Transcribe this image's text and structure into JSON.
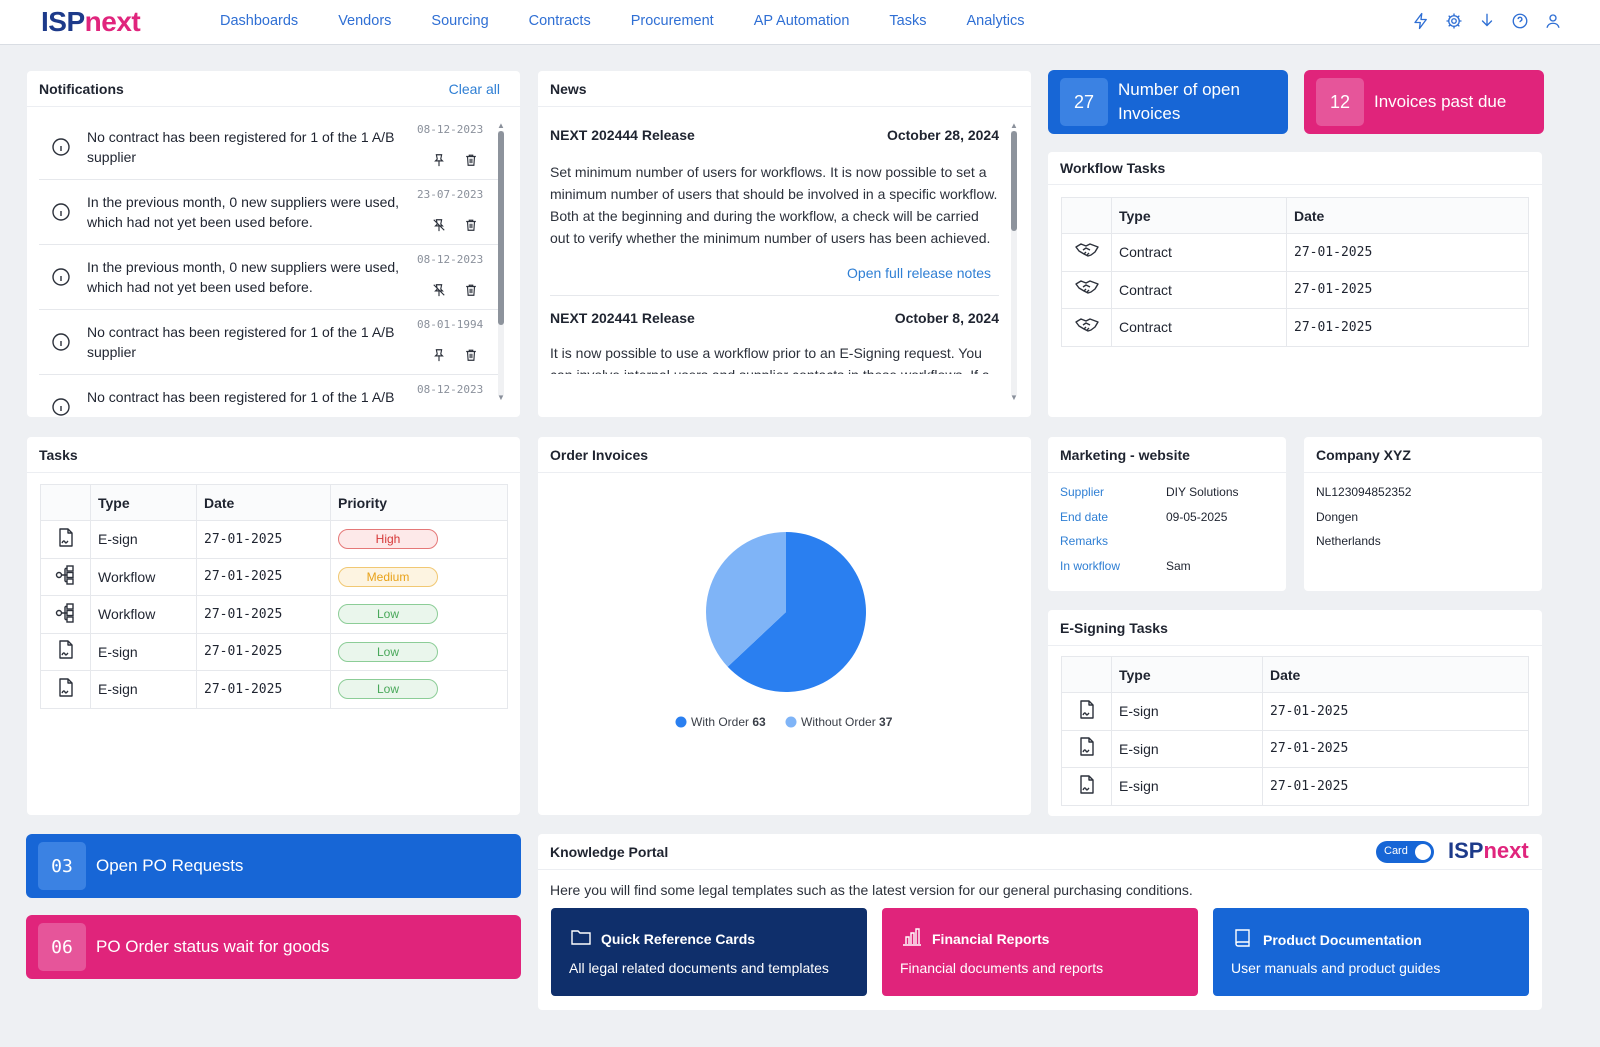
{
  "header": {
    "logo_a": "ISP",
    "logo_b": "next",
    "nav": [
      "Dashboards",
      "Vendors",
      "Sourcing",
      "Contracts",
      "Procurement",
      "AP Automation",
      "Tasks",
      "Analytics"
    ],
    "icons": [
      "flash-icon",
      "gear-icon",
      "download-icon",
      "help-icon",
      "user-icon"
    ]
  },
  "notifications": {
    "title": "Notifications",
    "clear_label": "Clear all",
    "items": [
      {
        "text": "No contract has been registered for 1 of the 1 A/B supplier",
        "date": "08-12-2023",
        "pinned": true
      },
      {
        "text": "In the previous month, 0 new suppliers were used, which had not yet been used before.",
        "date": "23-07-2023",
        "pinned": false
      },
      {
        "text": "In the previous month, 0 new suppliers were used, which had not yet been used before.",
        "date": "08-12-2023",
        "pinned": false
      },
      {
        "text": "No contract has been registered for 1 of the 1 A/B supplier",
        "date": "08-01-1994",
        "pinned": true
      },
      {
        "text": "No contract has been registered for 1 of the 1 A/B",
        "date": "08-12-2023",
        "pinned": true
      }
    ]
  },
  "news": {
    "title": "News",
    "items": [
      {
        "title": "NEXT 202444 Release",
        "date": "October 28, 2024",
        "body": "Set minimum number of users for workflows. It is now possible to set a minimum number of users that should be involved in a specific workflow. Both at the beginning and during the workflow, a check will be carried out to verify whether the minimum number of users has been achieved.",
        "link": "Open full release notes"
      },
      {
        "title": "NEXT 202441 Release",
        "date": "October 8, 2024",
        "body": "It is now possible to use a workflow prior to an E-Signing request. You can involve internal users and supplier contacts in these workflows. If a"
      }
    ]
  },
  "kpis": {
    "open_invoices": {
      "value": "27",
      "label": "Number of open Invoices"
    },
    "past_due": {
      "value": "12",
      "label": "Invoices past due"
    },
    "open_po": {
      "value": "03",
      "label": "Open PO Requests"
    },
    "po_wait": {
      "value": "06",
      "label": "PO Order status wait for goods"
    }
  },
  "workflow_tasks": {
    "title": "Workflow Tasks",
    "columns": [
      "Type",
      "Date"
    ],
    "rows": [
      {
        "type": "Contract",
        "date": "27-01-2025"
      },
      {
        "type": "Contract",
        "date": "27-01-2025"
      },
      {
        "type": "Contract",
        "date": "27-01-2025"
      }
    ]
  },
  "tasks": {
    "title": "Tasks",
    "columns": [
      "Type",
      "Date",
      "Priority"
    ],
    "rows": [
      {
        "type": "E-sign",
        "icon": "document-sign-icon",
        "date": "27-01-2025",
        "priority": "High"
      },
      {
        "type": "Workflow",
        "icon": "workflow-icon",
        "date": "27-01-2025",
        "priority": "Medium"
      },
      {
        "type": "Workflow",
        "icon": "workflow-icon",
        "date": "27-01-2025",
        "priority": "Low"
      },
      {
        "type": "E-sign",
        "icon": "document-sign-icon",
        "date": "27-01-2025",
        "priority": "Low"
      },
      {
        "type": "E-sign",
        "icon": "document-sign-icon",
        "date": "27-01-2025",
        "priority": "Low"
      }
    ]
  },
  "order_invoices": {
    "title": "Order Invoices"
  },
  "chart_data": {
    "type": "pie",
    "categories": [
      "With Order",
      "Without Order"
    ],
    "values": [
      63,
      37
    ],
    "colors": [
      "#2a7ff0",
      "#7fb4f7"
    ],
    "legend": "bottom"
  },
  "marketing": {
    "title": "Marketing - website",
    "rows": [
      {
        "k": "Supplier",
        "v": "DIY Solutions"
      },
      {
        "k": "End date",
        "v": "09-05-2025"
      },
      {
        "k": "Remarks",
        "v": ""
      },
      {
        "k": "In workflow",
        "v": "Sam"
      }
    ]
  },
  "company": {
    "title": "Company XYZ",
    "lines": [
      "NL123094852352",
      "Dongen",
      "Netherlands"
    ]
  },
  "esign_tasks": {
    "title": "E-Signing Tasks",
    "columns": [
      "Type",
      "Date"
    ],
    "rows": [
      {
        "type": "E-sign",
        "date": "27-01-2025"
      },
      {
        "type": "E-sign",
        "date": "27-01-2025"
      },
      {
        "type": "E-sign",
        "date": "27-01-2025"
      }
    ]
  },
  "knowledge": {
    "title": "Knowledge Portal",
    "toggle_label": "Card",
    "intro": "Here you will find some legal templates such as the latest version for our general purchasing conditions.",
    "tiles": [
      {
        "title": "Quick Reference Cards",
        "desc": "All legal related documents and templates",
        "color": "#0f2f6b",
        "icon": "folder-icon"
      },
      {
        "title": "Financial Reports",
        "desc": "Financial documents and reports",
        "color": "#e0247b",
        "icon": "bar-chart-icon"
      },
      {
        "title": "Product Documentation",
        "desc": "User manuals and product guides",
        "color": "#1766d6",
        "icon": "book-icon"
      }
    ]
  }
}
